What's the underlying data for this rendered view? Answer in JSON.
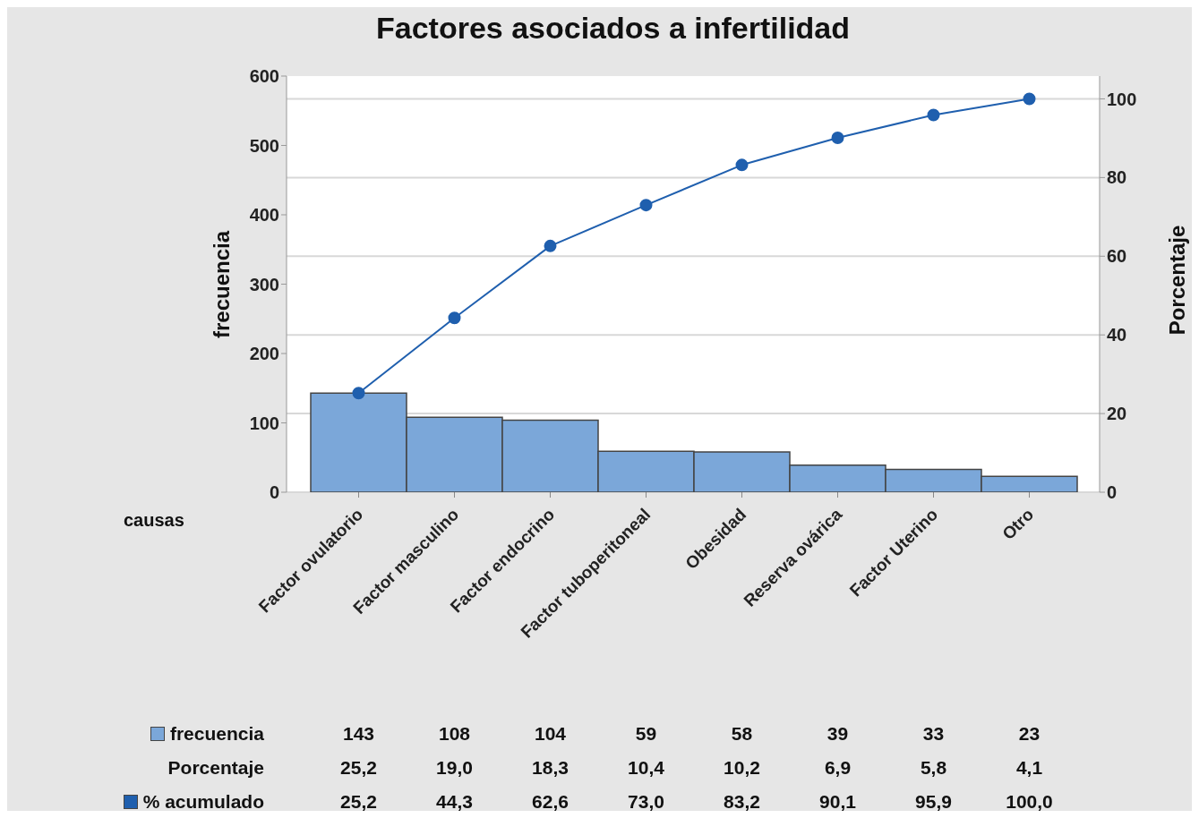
{
  "chart_data": {
    "type": "bar",
    "title": "Factores asociados a infertilidad",
    "xlabel": "causas",
    "ylabel": "frecuencia",
    "y2label": "Porcentaje",
    "categories": [
      "Factor ovulatorio",
      "Factor masculino",
      "Factor endocrino",
      "Factor tuboperitoneal",
      "Obesidad",
      "Reserva ovárica",
      "Factor Uterino",
      "Otro"
    ],
    "series": [
      {
        "name": "frecuencia",
        "color": "#7ba7d9",
        "values": [
          143,
          108,
          104,
          59,
          58,
          39,
          33,
          23
        ],
        "value_labels": [
          "143",
          "108",
          "104",
          "59",
          "58",
          "39",
          "33",
          "23"
        ]
      },
      {
        "name": "% acumulado",
        "type": "line",
        "axis": "y2",
        "color": "#1f5fae",
        "marker": "circle",
        "values": [
          25.2,
          44.3,
          62.6,
          73.0,
          83.2,
          90.1,
          95.9,
          100.0
        ],
        "value_labels": [
          "25,2",
          "44,3",
          "62,6",
          "73,0",
          "83,2",
          "90,1",
          "95,9",
          "100,0"
        ]
      }
    ],
    "annotations": [
      "Porcentaje",
      "25,2",
      "19,0",
      "18,3",
      "10,4",
      "10,2",
      "6,9",
      "5,8",
      "4,1"
    ],
    "ylim": [
      0,
      600
    ],
    "yticks": [
      0,
      100,
      200,
      300,
      400,
      500,
      600
    ],
    "y2lim": [
      0,
      105.8
    ],
    "y2ticks": [
      0,
      20,
      40,
      60,
      80,
      100
    ],
    "grid": true,
    "legend": "bottom left"
  }
}
